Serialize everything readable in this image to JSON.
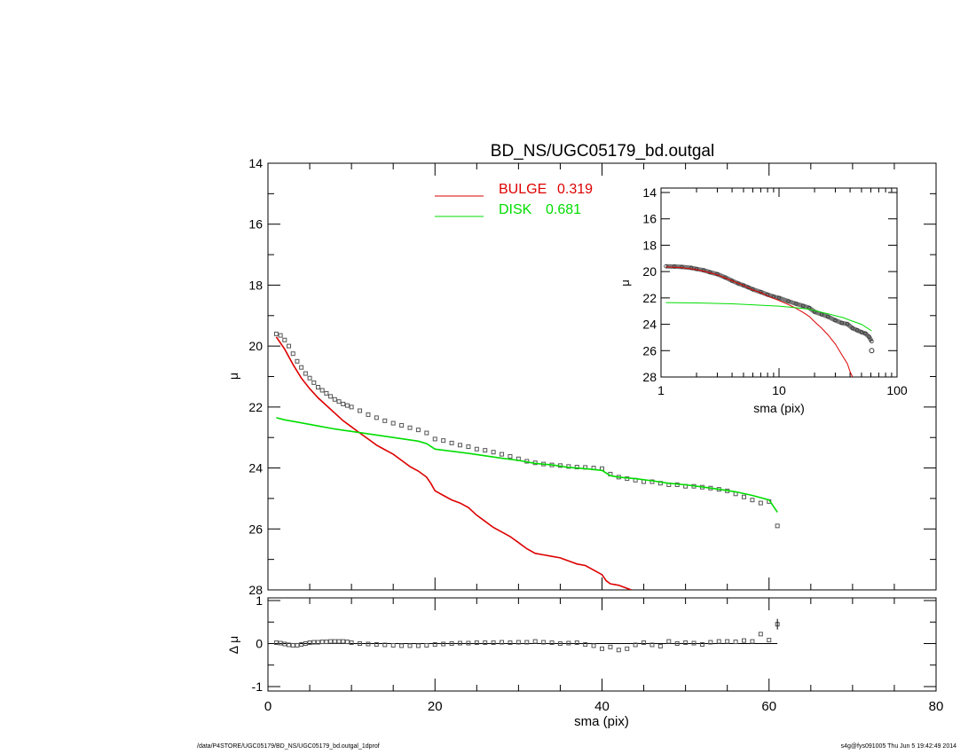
{
  "title": "BD_NS/UGC05179_bd.outgal",
  "footer": {
    "left": "/data/P4STORE/UGC05179/BD_NS/UGC05179_bd.outgal_1dprof",
    "right": "s4g@fys091005  Thu Jun  5 19:42:49 2014"
  },
  "colors": {
    "bulge": "#dd0000",
    "disk": "#00dd00",
    "data": "#555555",
    "axis": "#000000"
  },
  "chart_data": [
    {
      "type": "line",
      "panel": "main",
      "ylabel": "μ",
      "xlim": [
        0,
        80
      ],
      "ylim": [
        28,
        14
      ],
      "yticks": [
        "14",
        "16",
        "18",
        "20",
        "22",
        "24",
        "26",
        "28"
      ],
      "legend_position": "top-center",
      "legend": [
        {
          "label": "BULGE",
          "value": "0.319",
          "series": "bulge"
        },
        {
          "label": "DISK",
          "value": "0.681",
          "series": "disk"
        }
      ],
      "series": [
        {
          "key": "data",
          "style": "markers",
          "x": [
            1,
            1.5,
            2,
            2.5,
            3,
            3.5,
            4,
            4.5,
            5,
            5.5,
            6,
            6.5,
            7,
            7.5,
            8,
            8.5,
            9,
            9.5,
            10,
            11,
            12,
            13,
            14,
            15,
            16,
            17,
            18,
            19,
            20,
            21,
            22,
            23,
            24,
            25,
            26,
            27,
            28,
            29,
            30,
            31,
            32,
            33,
            34,
            35,
            36,
            37,
            38,
            39,
            40,
            41,
            42,
            43,
            44,
            45,
            46,
            47,
            48,
            49,
            50,
            51,
            52,
            53,
            54,
            55,
            56,
            57,
            58,
            59,
            60,
            61
          ],
          "y": [
            19.6,
            19.65,
            19.8,
            20.0,
            20.25,
            20.5,
            20.7,
            20.9,
            21.05,
            21.2,
            21.35,
            21.45,
            21.55,
            21.65,
            21.75,
            21.82,
            21.9,
            21.95,
            22.0,
            22.12,
            22.25,
            22.35,
            22.45,
            22.53,
            22.6,
            22.68,
            22.75,
            22.85,
            23.05,
            23.1,
            23.18,
            23.25,
            23.3,
            23.38,
            23.42,
            23.48,
            23.55,
            23.62,
            23.7,
            23.78,
            23.83,
            23.87,
            23.9,
            23.92,
            23.95,
            23.97,
            23.98,
            24.0,
            24.02,
            24.2,
            24.3,
            24.35,
            24.4,
            24.45,
            24.45,
            24.5,
            24.55,
            24.55,
            24.6,
            24.6,
            24.63,
            24.66,
            24.7,
            24.75,
            24.85,
            24.95,
            25.05,
            25.15,
            25.1,
            25.9
          ]
        },
        {
          "key": "bulge",
          "style": "line",
          "x": [
            1,
            2,
            3,
            4,
            5,
            6,
            7,
            8,
            9,
            10,
            11,
            12,
            13,
            14,
            15,
            16,
            17,
            18,
            19,
            19.5,
            20,
            21,
            22,
            23,
            24,
            25,
            26,
            27,
            28,
            29,
            30,
            31,
            32,
            33,
            34,
            35,
            36,
            37,
            38,
            39,
            40,
            40.5,
            41,
            42,
            43,
            43.5
          ],
          "y": [
            19.7,
            20.1,
            20.6,
            21.05,
            21.4,
            21.7,
            21.95,
            22.2,
            22.45,
            22.65,
            22.85,
            23.05,
            23.25,
            23.4,
            23.55,
            23.75,
            23.95,
            24.1,
            24.3,
            24.5,
            24.75,
            24.9,
            25.05,
            25.15,
            25.3,
            25.55,
            25.75,
            25.95,
            26.1,
            26.25,
            26.45,
            26.65,
            26.8,
            26.85,
            26.9,
            26.95,
            27.05,
            27.15,
            27.2,
            27.35,
            27.5,
            27.7,
            27.8,
            27.85,
            27.95,
            28.0
          ]
        },
        {
          "key": "disk",
          "style": "line",
          "x": [
            1,
            2,
            4,
            6,
            8,
            10,
            12,
            14,
            16,
            18,
            19,
            20,
            22,
            24,
            26,
            28,
            30,
            32,
            34,
            36,
            38,
            40,
            41,
            42,
            44,
            46,
            48,
            50,
            52,
            54,
            56,
            58,
            60,
            61
          ],
          "y": [
            22.35,
            22.42,
            22.52,
            22.62,
            22.72,
            22.8,
            22.88,
            22.96,
            23.04,
            23.12,
            23.2,
            23.38,
            23.45,
            23.52,
            23.6,
            23.68,
            23.75,
            23.85,
            23.9,
            23.98,
            24.02,
            24.08,
            24.25,
            24.3,
            24.35,
            24.42,
            24.5,
            24.55,
            24.62,
            24.7,
            24.78,
            24.9,
            25.05,
            25.45
          ]
        }
      ]
    },
    {
      "type": "scatter",
      "panel": "residual",
      "xlabel": "sma (pix)",
      "ylabel": "Δ μ",
      "xlim": [
        0,
        80
      ],
      "ylim": [
        -1,
        1
      ],
      "xticks": [
        "0",
        "20",
        "40",
        "60",
        "80"
      ],
      "yticks": [
        "-1",
        "0",
        "1"
      ],
      "series": [
        {
          "key": "residual",
          "x": [
            1,
            1.5,
            2,
            2.5,
            3,
            3.5,
            4,
            4.5,
            5,
            5.5,
            6,
            6.5,
            7,
            7.5,
            8,
            8.5,
            9,
            9.5,
            10,
            11,
            12,
            13,
            14,
            15,
            16,
            17,
            18,
            19,
            20,
            21,
            22,
            23,
            24,
            25,
            26,
            27,
            28,
            29,
            30,
            31,
            32,
            33,
            34,
            35,
            36,
            37,
            38,
            39,
            40,
            41,
            42,
            43,
            44,
            45,
            46,
            47,
            48,
            49,
            50,
            51,
            52,
            53,
            54,
            55,
            56,
            57,
            58,
            59,
            60,
            61
          ],
          "y": [
            0.02,
            0.01,
            -0.01,
            -0.03,
            -0.04,
            -0.04,
            -0.02,
            0.0,
            0.02,
            0.03,
            0.03,
            0.04,
            0.04,
            0.05,
            0.05,
            0.05,
            0.05,
            0.04,
            0.02,
            0.0,
            -0.01,
            -0.02,
            -0.03,
            -0.04,
            -0.05,
            -0.05,
            -0.05,
            -0.04,
            -0.02,
            -0.01,
            0.0,
            0.01,
            0.01,
            0.02,
            0.02,
            0.02,
            0.03,
            0.02,
            0.03,
            0.03,
            0.05,
            0.03,
            0.02,
            0.0,
            0.01,
            0.02,
            -0.02,
            -0.05,
            -0.12,
            -0.08,
            -0.15,
            -0.12,
            -0.03,
            0.02,
            -0.03,
            -0.06,
            0.05,
            0.0,
            0.02,
            0.01,
            -0.02,
            0.03,
            0.05,
            0.05,
            0.04,
            0.07,
            0.05,
            0.22,
            0.08,
            0.45
          ]
        }
      ]
    },
    {
      "type": "line",
      "panel": "inset",
      "xscale": "log",
      "xlabel": "sma (pix)",
      "ylabel": "μ",
      "xlim": [
        1,
        100
      ],
      "ylim": [
        28,
        14
      ],
      "xticks": [
        "1",
        "10",
        "100"
      ],
      "yticks": [
        "14",
        "16",
        "18",
        "20",
        "22",
        "24",
        "26",
        "28"
      ],
      "series": [
        {
          "key": "data",
          "style": "markers",
          "x": [
            1.1,
            1.3,
            1.5,
            1.8,
            2,
            2.3,
            2.6,
            3,
            3.5,
            4,
            4.5,
            5,
            5.5,
            6,
            7,
            8,
            9,
            10,
            12,
            14,
            16,
            18,
            20,
            23,
            26,
            30,
            34,
            38,
            42,
            46,
            50,
            54,
            58,
            61
          ],
          "y": [
            19.6,
            19.62,
            19.65,
            19.72,
            19.8,
            19.9,
            20.05,
            20.2,
            20.45,
            20.7,
            20.9,
            21.05,
            21.2,
            21.35,
            21.55,
            21.75,
            21.9,
            22.0,
            22.25,
            22.45,
            22.6,
            22.75,
            23.05,
            23.25,
            23.42,
            23.7,
            23.9,
            23.98,
            24.3,
            24.45,
            24.6,
            24.7,
            24.95,
            25.3
          ]
        },
        {
          "key": "bulge",
          "style": "line",
          "x": [
            1.1,
            1.5,
            2,
            2.5,
            3,
            4,
            5,
            6,
            7,
            8,
            10,
            12,
            14,
            16,
            18,
            20,
            23,
            26,
            30,
            34,
            38,
            40,
            42
          ],
          "y": [
            19.65,
            19.7,
            19.85,
            20.05,
            20.25,
            20.7,
            21.05,
            21.4,
            21.6,
            21.85,
            22.2,
            22.5,
            22.8,
            23.1,
            23.4,
            23.8,
            24.3,
            24.8,
            25.5,
            26.3,
            27.0,
            27.6,
            28.0
          ]
        },
        {
          "key": "disk",
          "style": "line",
          "x": [
            1.1,
            2,
            4,
            6,
            8,
            10,
            14,
            18,
            22,
            26,
            30,
            35,
            40,
            50,
            61
          ],
          "y": [
            22.35,
            22.38,
            22.45,
            22.52,
            22.58,
            22.62,
            22.75,
            22.85,
            23.05,
            23.2,
            23.35,
            23.5,
            23.7,
            24.0,
            24.5
          ]
        }
      ]
    }
  ]
}
